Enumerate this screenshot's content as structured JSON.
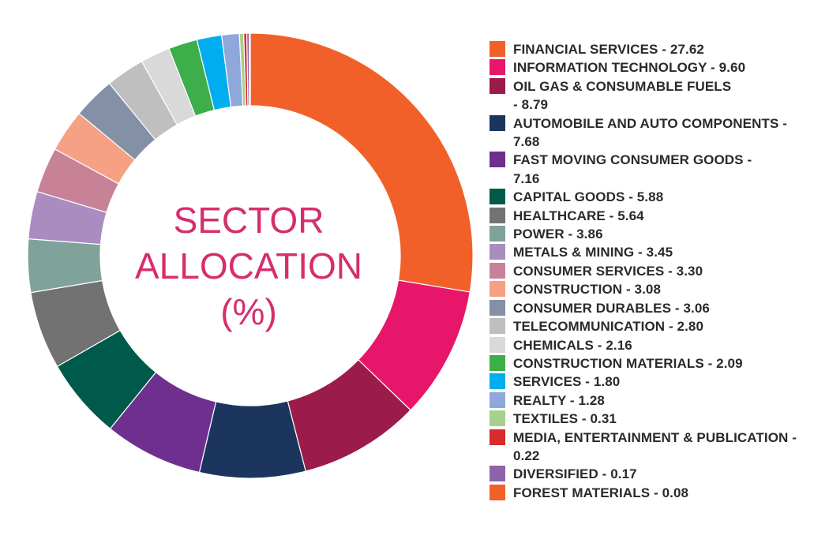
{
  "chart_data": {
    "type": "pie",
    "title": [
      "SECTOR",
      "ALLOCATION",
      "(%)"
    ],
    "slices": [
      {
        "label": "FINANCIAL SERVICES  - 27.62",
        "value": 27.62,
        "color": "#F2602A"
      },
      {
        "label": "INFORMATION TECHNOLOGY - 9.60",
        "value": 9.6,
        "color": "#E8166A"
      },
      {
        "label": "OIL GAS & CONSUMABLE FUELS\n- 8.79",
        "value": 8.79,
        "color": "#9B1B4B"
      },
      {
        "label": "AUTOMOBILE AND AUTO COMPONENTS -\n7.68",
        "value": 7.68,
        "color": "#1B355E"
      },
      {
        "label": "FAST MOVING CONSUMER GOODS -\n7.16",
        "value": 7.16,
        "color": "#6F2F8F"
      },
      {
        "label": "CAPITAL GOODS - 5.88",
        "value": 5.88,
        "color": "#005A4B"
      },
      {
        "label": "HEALTHCARE - 5.64",
        "value": 5.64,
        "color": "#727272"
      },
      {
        "label": "POWER - 3.86",
        "value": 3.86,
        "color": "#7FA39A"
      },
      {
        "label": "METALS & MINING - 3.45",
        "value": 3.45,
        "color": "#AB8CC0"
      },
      {
        "label": "CONSUMER SERVICES - 3.30",
        "value": 3.3,
        "color": "#C88297"
      },
      {
        "label": "CONSTRUCTION - 3.08",
        "value": 3.08,
        "color": "#F6A183"
      },
      {
        "label": "CONSUMER DURABLES - 3.06",
        "value": 3.06,
        "color": "#8390A6"
      },
      {
        "label": "TELECOMMUNICATION - 2.80",
        "value": 2.8,
        "color": "#BFBFBF"
      },
      {
        "label": "CHEMICALS - 2.16",
        "value": 2.16,
        "color": "#D9D9D9"
      },
      {
        "label": "CONSTRUCTION MATERIALS - 2.09",
        "value": 2.09,
        "color": "#3DAE49"
      },
      {
        "label": "SERVICES - 1.80",
        "value": 1.8,
        "color": "#00AEEF"
      },
      {
        "label": "REALTY - 1.28",
        "value": 1.28,
        "color": "#8FA8DC"
      },
      {
        "label": "TEXTILES - 0.31",
        "value": 0.31,
        "color": "#A8D08D"
      },
      {
        "label": "MEDIA, ENTERTAINMENT & PUBLICATION -\n0.22",
        "value": 0.22,
        "color": "#D92B2B"
      },
      {
        "label": "DIVERSIFIED - 0.17",
        "value": 0.17,
        "color": "#8E63A9"
      },
      {
        "label": "FOREST MATERIALS - 0.08",
        "value": 0.08,
        "color": "#F2602A"
      }
    ],
    "legend_placement": "right"
  }
}
